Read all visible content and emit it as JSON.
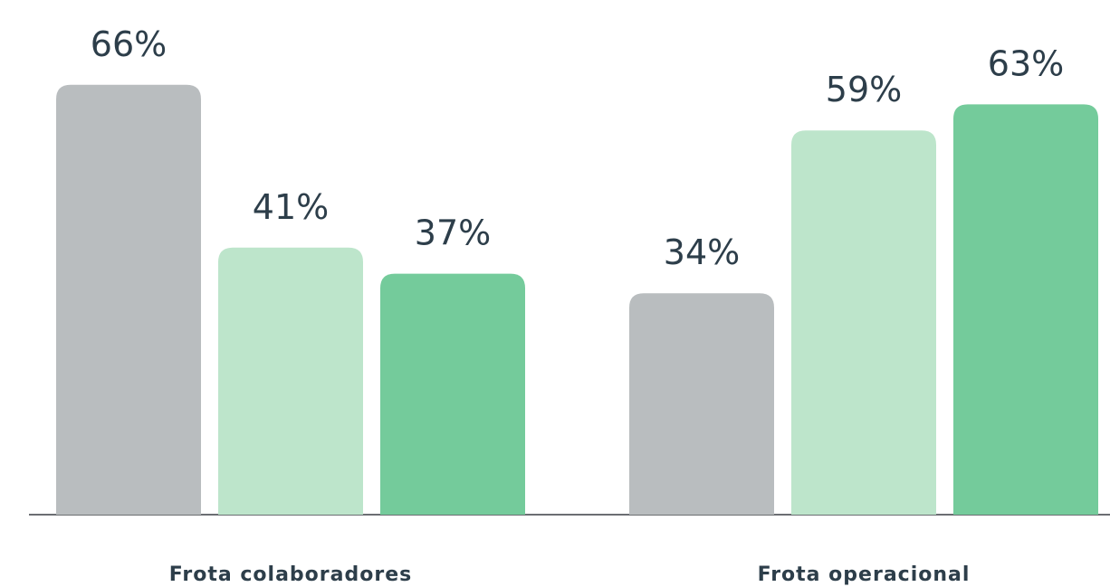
{
  "chart_data": {
    "type": "bar",
    "categories": [
      "Frota colaboradores",
      "Frota operacional"
    ],
    "series": [
      {
        "color": "#b9bdbf",
        "values": [
          66,
          34
        ],
        "value_labels": [
          "66%",
          "34%"
        ]
      },
      {
        "color": "#bde5cb",
        "values": [
          41,
          59
        ],
        "value_labels": [
          "41%",
          "59%"
        ]
      },
      {
        "color": "#74cb9b",
        "values": [
          37,
          63
        ],
        "value_labels": [
          "37%",
          "63%"
        ]
      }
    ]
  }
}
